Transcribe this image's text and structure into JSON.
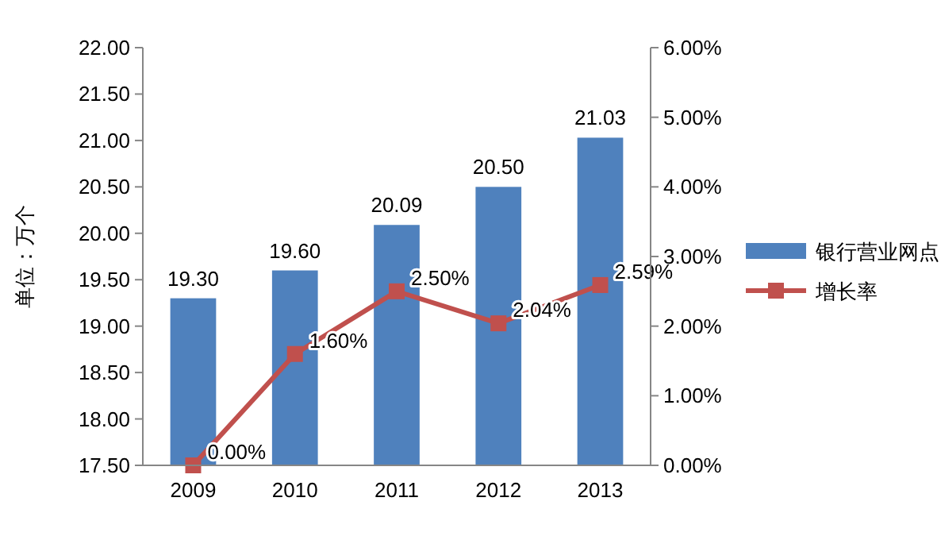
{
  "chart_data": {
    "type": "bar",
    "ylabel": "单位：万个",
    "categories": [
      "2009",
      "2010",
      "2011",
      "2012",
      "2013"
    ],
    "series": [
      {
        "name": "银行营业网点",
        "color": "#4f81bd",
        "values": [
          19.3,
          19.6,
          20.09,
          20.5,
          21.03
        ],
        "value_labels": [
          "19.30",
          "19.60",
          "20.09",
          "20.50",
          "21.03"
        ]
      },
      {
        "name": "增长率",
        "type": "line",
        "axis": "y2",
        "color": "#c0504d",
        "marker": "square",
        "values": [
          0,
          1.6,
          2.5,
          2.04,
          2.59
        ],
        "value_labels": [
          "0.00%",
          "1.60%",
          "2.50%",
          "2.04%",
          "2.59%"
        ]
      }
    ],
    "ylim": [
      17.5,
      22
    ],
    "yticks": [
      {
        "value": 17.5,
        "label": "17.50"
      },
      {
        "value": 18,
        "label": "18.00"
      },
      {
        "value": 18.5,
        "label": "18.50"
      },
      {
        "value": 19,
        "label": "19.00"
      },
      {
        "value": 19.5,
        "label": "19.50"
      },
      {
        "value": 20,
        "label": "20.00"
      },
      {
        "value": 20.5,
        "label": "20.50"
      },
      {
        "value": 21,
        "label": "21.00"
      },
      {
        "value": 21.5,
        "label": "21.50"
      },
      {
        "value": 22,
        "label": "22.00"
      }
    ],
    "y2lim": [
      0,
      6
    ],
    "y2ticks": [
      {
        "value": 0,
        "label": "0.00%"
      },
      {
        "value": 1,
        "label": "1.00%"
      },
      {
        "value": 2,
        "label": "2.00%"
      },
      {
        "value": 3,
        "label": "3.00%"
      },
      {
        "value": 4,
        "label": "4.00%"
      },
      {
        "value": 5,
        "label": "5.00%"
      },
      {
        "value": 6,
        "label": "6.00%"
      }
    ],
    "legend": "right",
    "grid": false
  }
}
